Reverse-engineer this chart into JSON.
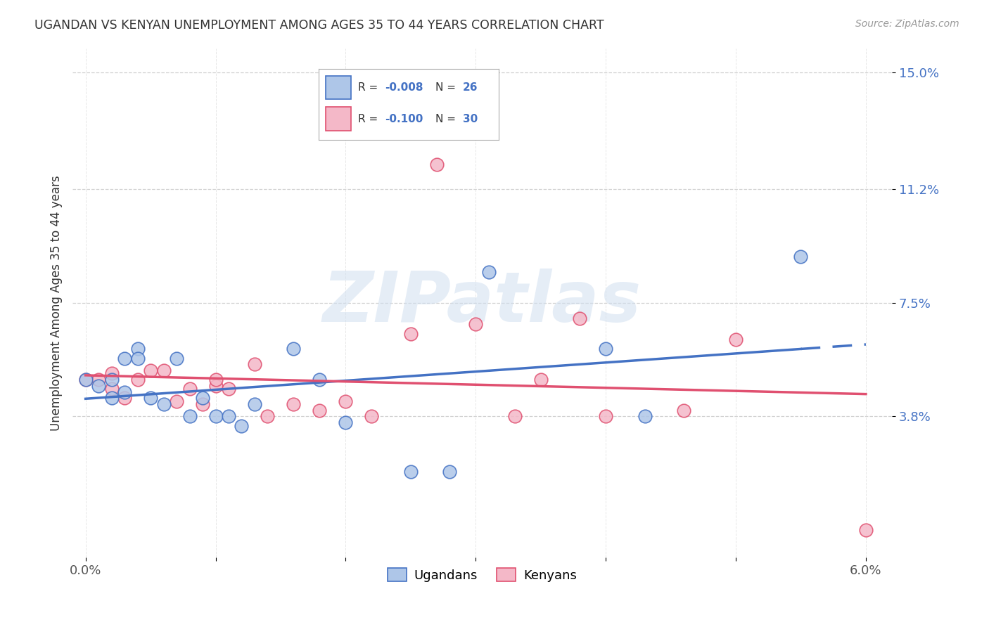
{
  "title": "UGANDAN VS KENYAN UNEMPLOYMENT AMONG AGES 35 TO 44 YEARS CORRELATION CHART",
  "source": "Source: ZipAtlas.com",
  "ylabel_label": "Unemployment Among Ages 35 to 44 years",
  "xlim": [
    -0.001,
    0.062
  ],
  "ylim": [
    -0.008,
    0.158
  ],
  "xtick_positions": [
    0.0,
    0.01,
    0.02,
    0.03,
    0.04,
    0.05,
    0.06
  ],
  "xticklabels": [
    "0.0%",
    "",
    "",
    "",
    "",
    "",
    "6.0%"
  ],
  "ytick_positions": [
    0.038,
    0.075,
    0.112,
    0.15
  ],
  "ytick_labels": [
    "3.8%",
    "7.5%",
    "11.2%",
    "15.0%"
  ],
  "ugandan_R": "-0.008",
  "ugandan_N": "26",
  "kenyan_R": "-0.100",
  "kenyan_N": "30",
  "ugandan_color": "#aec6e8",
  "kenyan_color": "#f4b8c8",
  "ugandan_line_color": "#4472c4",
  "kenyan_line_color": "#e05070",
  "ugandan_x": [
    0.0,
    0.001,
    0.002,
    0.002,
    0.003,
    0.003,
    0.004,
    0.004,
    0.005,
    0.006,
    0.007,
    0.008,
    0.009,
    0.01,
    0.011,
    0.012,
    0.013,
    0.016,
    0.018,
    0.02,
    0.025,
    0.028,
    0.031,
    0.04,
    0.043,
    0.055
  ],
  "ugandan_y": [
    0.05,
    0.048,
    0.044,
    0.05,
    0.046,
    0.057,
    0.06,
    0.057,
    0.044,
    0.042,
    0.057,
    0.038,
    0.044,
    0.038,
    0.038,
    0.035,
    0.042,
    0.06,
    0.05,
    0.036,
    0.02,
    0.02,
    0.085,
    0.06,
    0.038,
    0.09
  ],
  "kenyan_x": [
    0.0,
    0.001,
    0.002,
    0.002,
    0.003,
    0.004,
    0.005,
    0.006,
    0.007,
    0.008,
    0.009,
    0.01,
    0.01,
    0.011,
    0.013,
    0.014,
    0.016,
    0.018,
    0.02,
    0.022,
    0.025,
    0.027,
    0.03,
    0.033,
    0.035,
    0.038,
    0.04,
    0.046,
    0.05,
    0.06
  ],
  "kenyan_y": [
    0.05,
    0.05,
    0.047,
    0.052,
    0.044,
    0.05,
    0.053,
    0.053,
    0.043,
    0.047,
    0.042,
    0.048,
    0.05,
    0.047,
    0.055,
    0.038,
    0.042,
    0.04,
    0.043,
    0.038,
    0.065,
    0.12,
    0.068,
    0.038,
    0.05,
    0.07,
    0.038,
    0.04,
    0.063,
    0.001
  ]
}
